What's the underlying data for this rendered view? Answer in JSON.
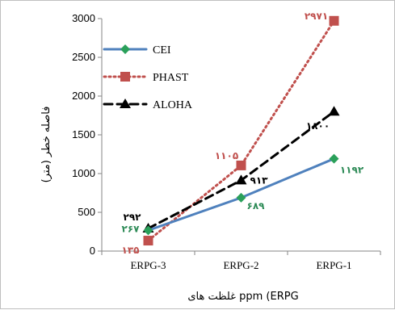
{
  "chart_data": {
    "type": "line",
    "categories": [
      "ERPG-3",
      "ERPG-2",
      "ERPG-1"
    ],
    "xlabel": "غلظت های ppm (ERPG",
    "ylabel": "فاصله خطر (متر)",
    "ylim": [
      0,
      3000
    ],
    "yticks": [
      "0",
      "500",
      "1000",
      "1500",
      "2000",
      "2500",
      "3000"
    ],
    "ytick_values": [
      0,
      500,
      1000,
      1500,
      2000,
      2500,
      3000
    ],
    "grid": false,
    "legend_position": "top-left",
    "series": [
      {
        "name": "CEI",
        "values": [
          267,
          689,
          1192
        ],
        "labels": [
          "۲۶۷",
          "۶۸۹",
          "۱۱۹۲"
        ],
        "color": "#4f81bd",
        "marker_color": "#2aa05a",
        "label_color": "#2e8b57",
        "style": "solid",
        "marker": "diamond"
      },
      {
        "name": "PHAST",
        "values": [
          135,
          1105,
          2971
        ],
        "labels": [
          "۱۳۵",
          "۱۱۰۵",
          "۲۹۷۱"
        ],
        "color": "#c0504d",
        "marker_color": "#c0504d",
        "label_color": "#c0504d",
        "style": "dotted",
        "marker": "square"
      },
      {
        "name": "ALOHA",
        "values": [
          292,
          913,
          1800
        ],
        "labels": [
          "۲۹۲",
          "۹۱۳",
          "۱۸۰۰"
        ],
        "color": "#000000",
        "marker_color": "#000000",
        "label_color": "#000000",
        "style": "dashed",
        "marker": "triangle"
      }
    ]
  }
}
